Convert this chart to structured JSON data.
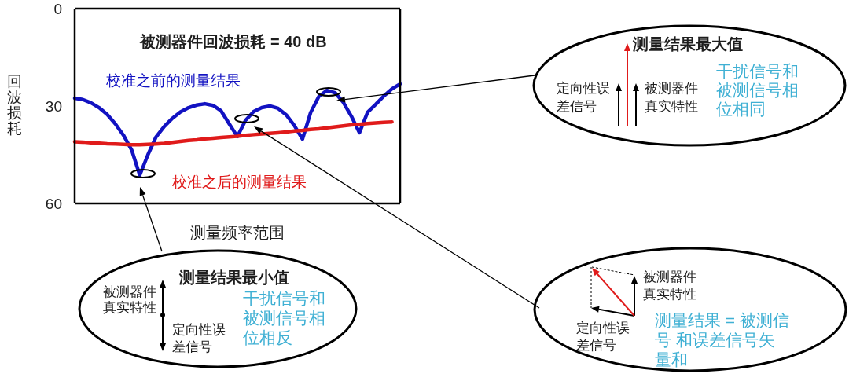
{
  "chart_data": {
    "type": "line",
    "title": "被测器件回波损耗 = 40 dB",
    "xlabel": "测量频率范围",
    "ylabel": "回波损耗",
    "categories": [
      null,
      null,
      null,
      null,
      null,
      null,
      null,
      null,
      null,
      null,
      null,
      null,
      null,
      null,
      null,
      null,
      null,
      null,
      null,
      null,
      null,
      null,
      null,
      null,
      null,
      null,
      null,
      null,
      null,
      null,
      null,
      null,
      null,
      null,
      null,
      null,
      null,
      null,
      null,
      null,
      null
    ],
    "series": [
      {
        "name": "校准之前的测量结果",
        "color": "#1212c2",
        "values": [
          27.6,
          28.0,
          29.0,
          30.5,
          32.6,
          35.5,
          39.0,
          43.5,
          51.3,
          45.0,
          39.5,
          36.3,
          33.8,
          31.8,
          30.5,
          29.7,
          29.3,
          29.8,
          31.5,
          35.5,
          39.4,
          34.4,
          31.7,
          30.5,
          30.0,
          30.7,
          32.7,
          36.0,
          40.2,
          32.0,
          27.1,
          25.2,
          25.9,
          28.8,
          33.1,
          38.2,
          31.9,
          29.5,
          26.9,
          24.7,
          23.2
        ]
      },
      {
        "name": "校准之后的测量结果",
        "color": "#e01b1b",
        "values": [
          41.0,
          41.1,
          41.3,
          41.4,
          41.6,
          41.7,
          41.8,
          41.9,
          41.9,
          41.8,
          41.7,
          41.5,
          41.2,
          40.9,
          40.6,
          40.4,
          40.1,
          39.9,
          39.7,
          39.5,
          39.3,
          39.0,
          38.8,
          38.6,
          38.4,
          38.2,
          38.0,
          37.7,
          37.5,
          37.2,
          37.0,
          36.7,
          36.4,
          36.1,
          35.8,
          35.6,
          35.4,
          35.2,
          35.0,
          34.9,
          null
        ]
      }
    ],
    "ylim": [
      60,
      0
    ],
    "yticks": [
      0,
      30,
      60
    ],
    "tick_labels": "y",
    "annotations": [
      "测量结果最大值",
      "定向性误差信号",
      "被测器件真实特性",
      "干扰信号和被测信号相位相同",
      "测量结果最小值",
      "被测器件真实特性",
      "定向性误差信号",
      "干扰信号和被测信号相位相反",
      "被测器件真实特性",
      "定向性误差信号",
      "测量结果 = 被测信号 和误差信号矢量和"
    ]
  }
}
